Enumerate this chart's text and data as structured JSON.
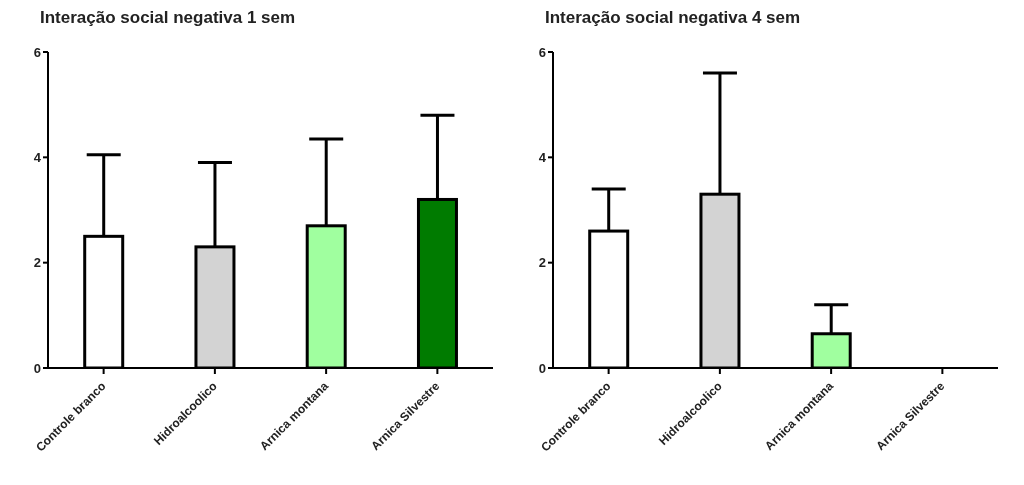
{
  "chart_data": [
    {
      "type": "bar",
      "title": "Interação social negativa 1 sem",
      "categories": [
        "Controle branco",
        "Hidroalcoolico",
        "Arnica montana",
        "Arnica Silvestre"
      ],
      "values": [
        2.5,
        2.3,
        2.7,
        3.2
      ],
      "colors": [
        "#ffffff",
        "#d3d3d3",
        "#a0ff9f",
        "#007b00"
      ],
      "errors": [
        [
          2.5,
          4.05
        ],
        [
          2.3,
          3.9
        ],
        [
          2.7,
          4.35
        ],
        [
          3.2,
          4.8
        ]
      ],
      "ylim": [
        0,
        6
      ],
      "yticks": [
        0,
        2,
        4,
        6
      ],
      "grid": false,
      "legend": false
    },
    {
      "type": "bar",
      "title": "Interação social negativa 4 sem",
      "categories": [
        "Controle branco",
        "Hidroalcoolico",
        "Arnica montana",
        "Arnica Silvestre"
      ],
      "values": [
        2.6,
        3.3,
        0.65,
        0
      ],
      "colors": [
        "#ffffff",
        "#d3d3d3",
        "#a0ff9f",
        "#007b00"
      ],
      "errors": [
        [
          2.6,
          3.4
        ],
        [
          3.3,
          5.6
        ],
        [
          0.65,
          1.2
        ],
        null
      ],
      "ylim": [
        0,
        6
      ],
      "yticks": [
        0,
        2,
        4,
        6
      ],
      "grid": false,
      "legend": false
    }
  ]
}
